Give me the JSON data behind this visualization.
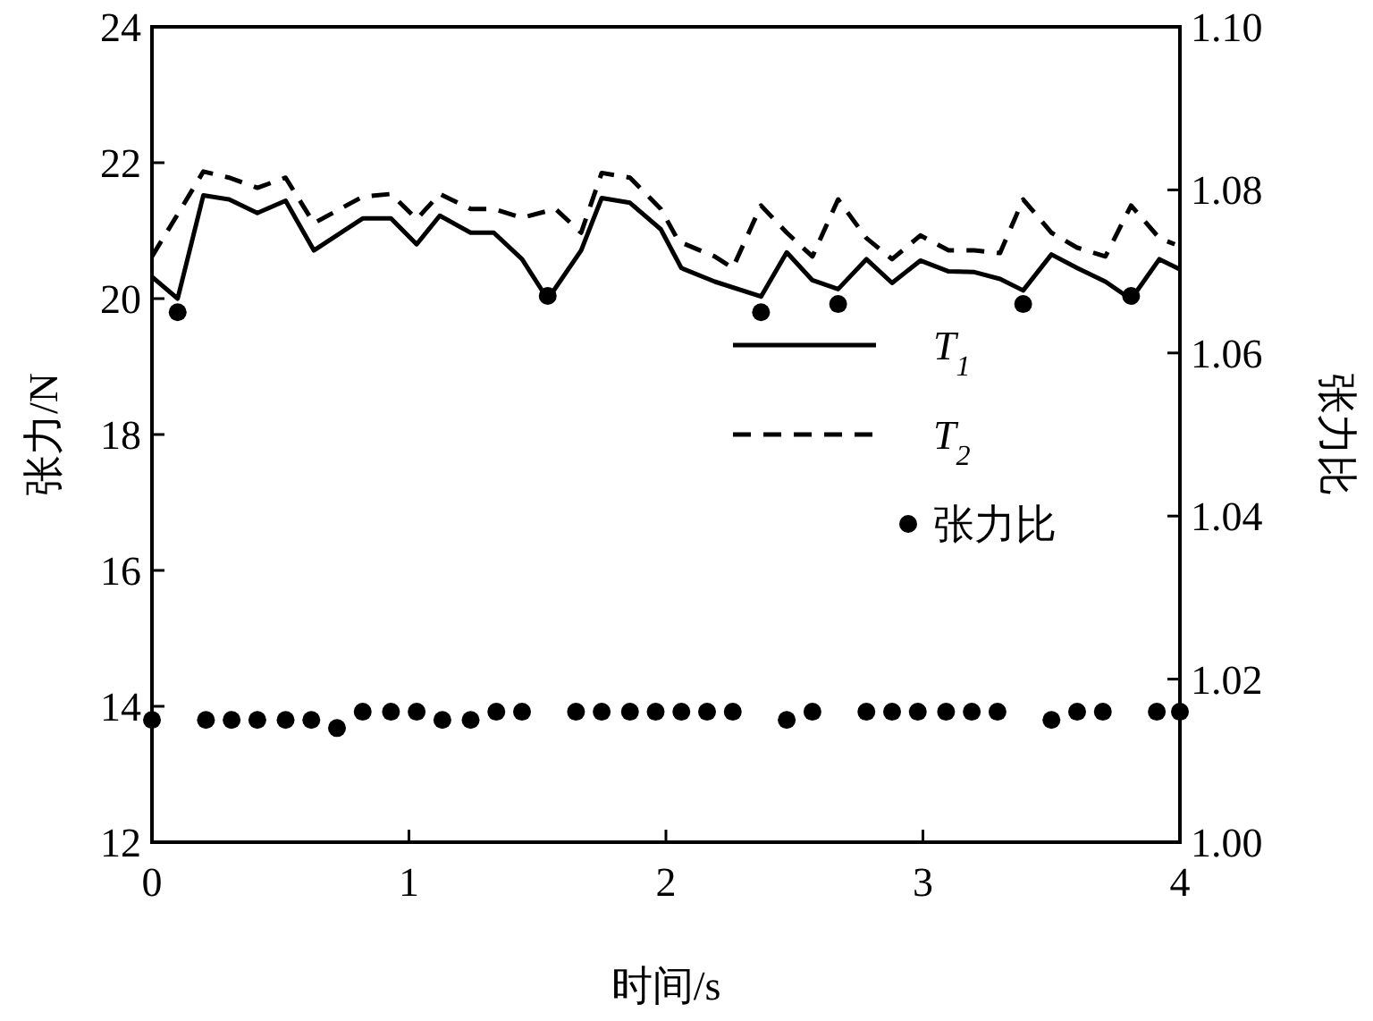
{
  "chart_data": {
    "type": "line",
    "xlabel": "时间/s",
    "ylabel": "张力/N",
    "y2label": "张力比",
    "xlim": [
      0,
      4
    ],
    "xticks": [
      0,
      1,
      2,
      3,
      4
    ],
    "ylim": [
      12,
      24
    ],
    "yticks": [
      12,
      14,
      16,
      18,
      20,
      22,
      24
    ],
    "y2lim": [
      1.0,
      1.1
    ],
    "y2ticks": [
      {
        "value": 1.0,
        "label": "1.00"
      },
      {
        "value": 1.02,
        "label": "1.02"
      },
      {
        "value": 1.04,
        "label": "1.04"
      },
      {
        "value": 1.06,
        "label": "1.06"
      },
      {
        "value": 1.08,
        "label": "1.08"
      },
      {
        "value": 1.1,
        "label": "1.10"
      }
    ],
    "legend": "center right",
    "grid": false,
    "series": [
      {
        "name": "T$_{1}$",
        "line_style": "solid",
        "marker": "none",
        "color": "#000000",
        "x": [
          0,
          0.1,
          0.2,
          0.3,
          0.41,
          0.52,
          0.63,
          0.82,
          0.93,
          1.03,
          1.12,
          1.24,
          1.33,
          1.44,
          1.54,
          1.67,
          1.75,
          1.86,
          1.98,
          2.06,
          2.19,
          2.37,
          2.47,
          2.57,
          2.67,
          2.78,
          2.88,
          2.99,
          3.1,
          3.2,
          3.3,
          3.39,
          3.5,
          3.6,
          3.71,
          3.81,
          3.92,
          4.0
        ],
        "values": [
          20.32,
          20.0,
          21.52,
          21.46,
          21.26,
          21.44,
          20.71,
          21.18,
          21.18,
          20.8,
          21.22,
          20.97,
          20.97,
          20.58,
          19.99,
          20.71,
          21.48,
          21.41,
          21.02,
          20.45,
          20.25,
          20.03,
          20.68,
          20.27,
          20.14,
          20.58,
          20.23,
          20.56,
          20.4,
          20.39,
          20.29,
          20.12,
          20.65,
          20.45,
          20.25,
          19.99,
          20.58,
          20.43
        ]
      },
      {
        "name": "T$_{2}$",
        "line_style": "dashed",
        "marker": "none",
        "color": "#000000",
        "x": [
          0,
          0.1,
          0.2,
          0.3,
          0.41,
          0.52,
          0.63,
          0.82,
          0.93,
          1.03,
          1.12,
          1.24,
          1.33,
          1.44,
          1.57,
          1.67,
          1.75,
          1.86,
          1.98,
          2.05,
          2.19,
          2.26,
          2.37,
          2.47,
          2.57,
          2.67,
          2.78,
          2.88,
          2.99,
          3.1,
          3.2,
          3.3,
          3.39,
          3.5,
          3.6,
          3.71,
          3.81,
          3.92,
          3.98
        ],
        "values": [
          20.62,
          21.24,
          21.87,
          21.78,
          21.63,
          21.78,
          21.11,
          21.5,
          21.54,
          21.17,
          21.54,
          21.32,
          21.32,
          21.19,
          21.32,
          20.97,
          21.85,
          21.78,
          21.32,
          20.84,
          20.62,
          20.45,
          21.37,
          20.97,
          20.62,
          21.46,
          20.89,
          20.58,
          20.93,
          20.71,
          20.71,
          20.67,
          21.46,
          20.97,
          20.75,
          20.62,
          21.37,
          20.89,
          20.8
        ]
      },
      {
        "name": "张力比",
        "type": "scatter",
        "axis": "y2",
        "marker": "circle",
        "color": "#000000",
        "x": [
          0,
          0.21,
          0.31,
          0.41,
          0.52,
          0.62,
          0.72,
          0.82,
          0.93,
          1.03,
          1.13,
          1.24,
          1.34,
          1.44,
          1.65,
          1.75,
          1.86,
          1.96,
          2.06,
          2.16,
          2.26,
          2.47,
          2.57,
          2.78,
          2.88,
          2.98,
          3.09,
          3.19,
          3.29,
          3.5,
          3.6,
          3.7,
          3.91,
          4.0,
          0.1,
          1.54,
          2.37,
          2.67,
          3.39,
          3.81
        ],
        "values": [
          1.015,
          1.015,
          1.015,
          1.015,
          1.015,
          1.015,
          1.014,
          1.016,
          1.016,
          1.016,
          1.015,
          1.015,
          1.016,
          1.016,
          1.016,
          1.016,
          1.016,
          1.016,
          1.016,
          1.016,
          1.016,
          1.015,
          1.016,
          1.016,
          1.016,
          1.016,
          1.016,
          1.016,
          1.016,
          1.015,
          1.016,
          1.016,
          1.016,
          1.016,
          1.065,
          1.067,
          1.065,
          1.066,
          1.066,
          1.067
        ]
      }
    ]
  }
}
